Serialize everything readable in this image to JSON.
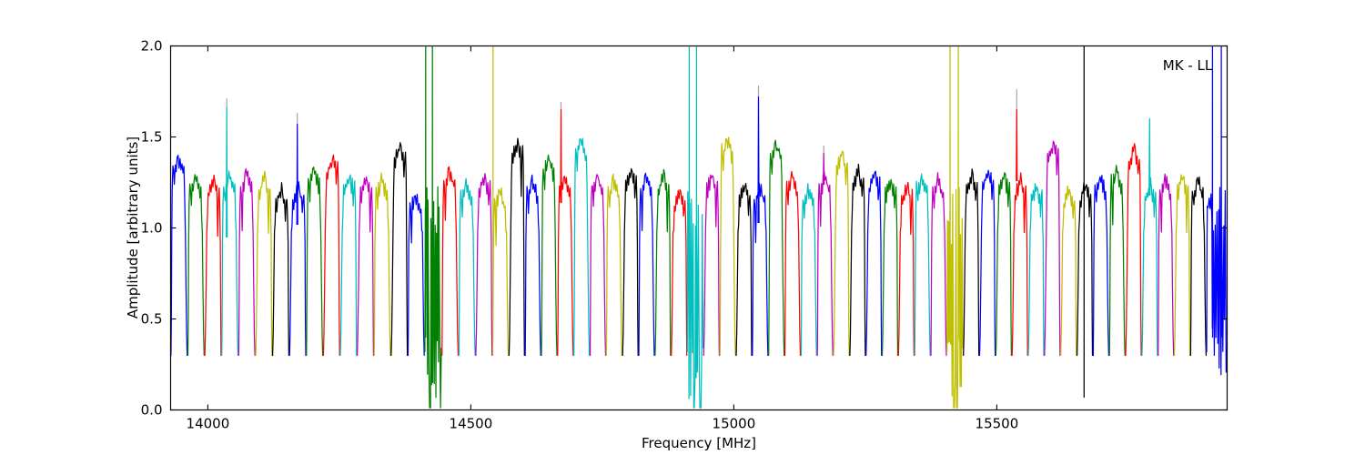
{
  "chart_data": {
    "type": "line",
    "title": "",
    "annotation": "MK - LL",
    "xlabel": "Frequency [MHz]",
    "ylabel": "Amplitude [arbitrary units]",
    "xlim": [
      13929.2,
      15938.0
    ],
    "ylim": [
      0.0,
      2.0
    ],
    "xticks": [
      14000,
      14500,
      15000,
      15500
    ],
    "yticks": [
      {
        "label": "0.0",
        "value": 0.0
      },
      {
        "label": "0.5",
        "value": 0.5
      },
      {
        "label": "1.0",
        "value": 1.0
      },
      {
        "label": "1.5",
        "value": 1.5
      },
      {
        "label": "2.0",
        "value": 2.0
      }
    ],
    "grid": false,
    "legend": null,
    "colors": {
      "b": "#0000ff",
      "g": "#008000",
      "r": "#ff0000",
      "c": "#00bfbf",
      "m": "#bf00bf",
      "y": "#bfbf00",
      "k": "#000000",
      "gray": "#aaaaaa"
    },
    "band_fields": [
      "f_start",
      "f_end",
      "color",
      "peak_amplitude",
      "kind"
    ],
    "band_kind_codes": {
      "n": "normal bandpass",
      "d": "noisy dropout channel"
    },
    "bands": [
      [
        13929.2,
        13961.4,
        "b",
        1.4,
        "n"
      ],
      [
        13961.4,
        13993.6,
        "g",
        1.3,
        "n"
      ],
      [
        13993.6,
        14025.8,
        "r",
        1.28,
        "n"
      ],
      [
        14025.8,
        14058.0,
        "c",
        1.3,
        "n"
      ],
      [
        14058.0,
        14090.2,
        "m",
        1.31,
        "n"
      ],
      [
        14090.2,
        14122.4,
        "y",
        1.29,
        "n"
      ],
      [
        14122.4,
        14154.6,
        "k",
        1.23,
        "n"
      ],
      [
        14154.6,
        14186.8,
        "b",
        1.24,
        "n"
      ],
      [
        14186.8,
        14219.0,
        "g",
        1.33,
        "n"
      ],
      [
        14219.0,
        14251.2,
        "r",
        1.4,
        "n"
      ],
      [
        14251.2,
        14283.4,
        "c",
        1.3,
        "n"
      ],
      [
        14283.4,
        14315.6,
        "m",
        1.28,
        "n"
      ],
      [
        14315.6,
        14347.8,
        "y",
        1.28,
        "n"
      ],
      [
        14347.8,
        14380.0,
        "k",
        1.46,
        "n"
      ],
      [
        14380.0,
        14412.2,
        "b",
        1.2,
        "n"
      ],
      [
        14412.2,
        14444.4,
        "g",
        1.25,
        "d"
      ],
      [
        14444.4,
        14476.6,
        "r",
        1.33,
        "n"
      ],
      [
        14476.6,
        14508.8,
        "c",
        1.25,
        "n"
      ],
      [
        14508.8,
        14541.0,
        "m",
        1.3,
        "n"
      ],
      [
        14541.0,
        14571.9,
        "y",
        1.22,
        "n"
      ],
      [
        14571.9,
        14602.7,
        "k",
        1.49,
        "n"
      ],
      [
        14602.7,
        14633.6,
        "b",
        1.27,
        "n"
      ],
      [
        14633.6,
        14664.4,
        "g",
        1.4,
        "n"
      ],
      [
        14664.4,
        14695.3,
        "r",
        1.3,
        "n"
      ],
      [
        14695.3,
        14726.1,
        "c",
        1.5,
        "n"
      ],
      [
        14726.1,
        14757.0,
        "m",
        1.31,
        "n"
      ],
      [
        14757.0,
        14787.9,
        "y",
        1.28,
        "n"
      ],
      [
        14787.9,
        14818.7,
        "k",
        1.34,
        "n"
      ],
      [
        14818.7,
        14849.6,
        "b",
        1.3,
        "n"
      ],
      [
        14849.6,
        14880.4,
        "g",
        1.3,
        "n"
      ],
      [
        14880.4,
        14911.3,
        "r",
        1.22,
        "n"
      ],
      [
        14911.3,
        14942.1,
        "c",
        1.25,
        "d"
      ],
      [
        14942.1,
        14973.0,
        "m",
        1.31,
        "n"
      ],
      [
        14973.0,
        15003.9,
        "y",
        1.5,
        "n"
      ],
      [
        15003.9,
        15034.7,
        "k",
        1.25,
        "n"
      ],
      [
        15034.7,
        15065.6,
        "b",
        1.24,
        "n"
      ],
      [
        15065.6,
        15096.4,
        "g",
        1.48,
        "n"
      ],
      [
        15096.4,
        15127.3,
        "r",
        1.3,
        "n"
      ],
      [
        15127.3,
        15158.1,
        "c",
        1.22,
        "n"
      ],
      [
        15158.1,
        15189.0,
        "m",
        1.3,
        "n"
      ],
      [
        15189.0,
        15219.9,
        "y",
        1.42,
        "n"
      ],
      [
        15219.9,
        15250.7,
        "k",
        1.33,
        "n"
      ],
      [
        15250.7,
        15281.6,
        "b",
        1.32,
        "n"
      ],
      [
        15281.6,
        15312.4,
        "g",
        1.28,
        "n"
      ],
      [
        15312.4,
        15343.3,
        "r",
        1.25,
        "n"
      ],
      [
        15343.3,
        15374.1,
        "c",
        1.3,
        "n"
      ],
      [
        15374.1,
        15405.0,
        "m",
        1.28,
        "n"
      ],
      [
        15405.0,
        15435.9,
        "y",
        1.25,
        "d"
      ],
      [
        15435.9,
        15466.7,
        "k",
        1.3,
        "n"
      ],
      [
        15466.7,
        15497.6,
        "b",
        1.33,
        "n"
      ],
      [
        15497.6,
        15528.4,
        "g",
        1.3,
        "n"
      ],
      [
        15528.4,
        15559.3,
        "r",
        1.28,
        "n"
      ],
      [
        15559.3,
        15590.1,
        "c",
        1.25,
        "n"
      ],
      [
        15590.1,
        15621.0,
        "m",
        1.48,
        "n"
      ],
      [
        15621.0,
        15651.9,
        "y",
        1.23,
        "n"
      ],
      [
        15651.9,
        15682.7,
        "k",
        1.25,
        "n"
      ],
      [
        15682.7,
        15713.6,
        "b",
        1.3,
        "n"
      ],
      [
        15713.6,
        15744.4,
        "g",
        1.33,
        "n"
      ],
      [
        15744.4,
        15775.3,
        "r",
        1.45,
        "n"
      ],
      [
        15775.3,
        15806.1,
        "c",
        1.25,
        "n"
      ],
      [
        15806.1,
        15837.0,
        "m",
        1.28,
        "n"
      ],
      [
        15837.0,
        15867.9,
        "y",
        1.3,
        "n"
      ],
      [
        15867.9,
        15898.7,
        "k",
        1.28,
        "n"
      ],
      [
        15898.7,
        15938.0,
        "b",
        1.25,
        "d"
      ]
    ],
    "rfi_spikes": [
      {
        "band": 4,
        "f": 14036.0,
        "base": 0.95,
        "amp": 1.66,
        "gray_tip": 1.71
      },
      {
        "band": 8,
        "f": 14170.0,
        "base": 1.02,
        "amp": 1.57,
        "gray_tip": 1.63
      },
      {
        "band": 24,
        "f": 14671.5,
        "base": 1.14,
        "amp": 1.65,
        "gray_tip": 1.69
      },
      {
        "band": 36,
        "f": 15047.0,
        "base": 1.03,
        "amp": 1.72,
        "gray_tip": 1.78
      },
      {
        "band": 40,
        "f": 15171.0,
        "base": 1.24,
        "amp": 1.41,
        "gray_tip": 1.45
      },
      {
        "band": 52,
        "f": 15538.0,
        "base": 1.26,
        "amp": 1.65,
        "gray_tip": 1.76
      },
      {
        "band": 60,
        "f": 15790.5,
        "base": 1.18,
        "amp": 1.6,
        "gray_tip": null
      }
    ],
    "full_vertical_lines": [
      {
        "band": 20,
        "f": 14542.3,
        "top": 2.0,
        "bottom": 0.55,
        "color": "y"
      },
      {
        "band": 56,
        "f": 15666.0,
        "top": 2.0,
        "bottom": 0.07,
        "color": "k"
      }
    ],
    "dropout_params": {
      "16": {
        "calm": 0.1,
        "spikes": [
          0.06,
          0.46
        ],
        "zeros": [
          0.32,
          0.97
        ],
        "floor": 0.05
      },
      "32": {
        "calm": 0.05,
        "spikes": [
          0.13,
          0.58
        ],
        "zeros": [
          0.43,
          0.82
        ],
        "floor": 0.04
      },
      "48": {
        "calm": 0.04,
        "spikes": [
          0.2,
          0.71
        ],
        "zeros": [
          0.45,
          0.62
        ],
        "floor": 0.04
      },
      "64": {
        "calm": 0.22,
        "spikes": [
          0.29,
          0.72
        ],
        "zeros": [],
        "floor": 0.16
      }
    }
  }
}
